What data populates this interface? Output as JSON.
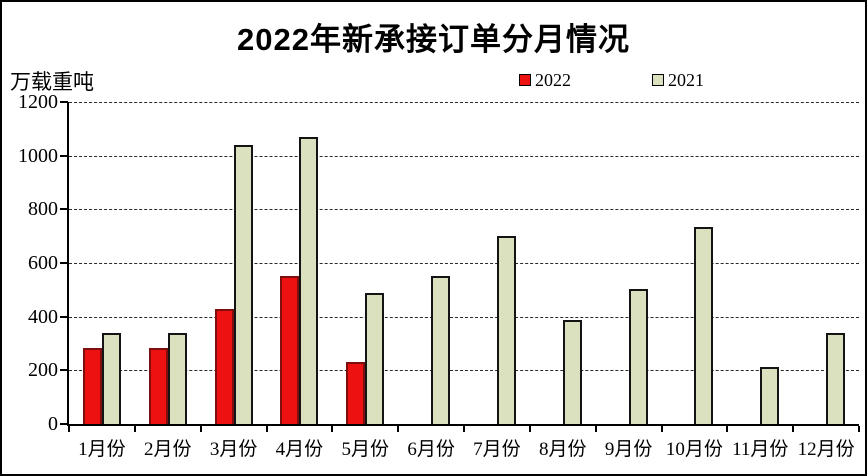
{
  "chart_data": {
    "type": "bar",
    "title": "2022年新承接订单分月情况",
    "unit_label": "万载重吨",
    "categories": [
      "1月份",
      "2月份",
      "3月份",
      "4月份",
      "5月份",
      "6月份",
      "7月份",
      "8月份",
      "9月份",
      "10月份",
      "11月份",
      "12月份"
    ],
    "series": [
      {
        "name": "2022",
        "fill": "#ee1111",
        "border": "#7f0e0e",
        "values": [
          284,
          284,
          430,
          550,
          232,
          null,
          null,
          null,
          null,
          null,
          null,
          null
        ]
      },
      {
        "name": "2021",
        "fill": "#dbe1bf",
        "border": "#141414",
        "values": [
          338,
          338,
          1040,
          1070,
          488,
          551,
          701,
          387,
          502,
          733,
          214,
          341
        ]
      }
    ],
    "ylim": [
      0,
      1200
    ],
    "ytick_step": 200,
    "yticks": [
      0,
      200,
      400,
      600,
      800,
      1000,
      1200
    ],
    "grid": "dashed-horizontal",
    "legend_position": "top",
    "axis_color": "#000000",
    "background": "#ffffff"
  }
}
